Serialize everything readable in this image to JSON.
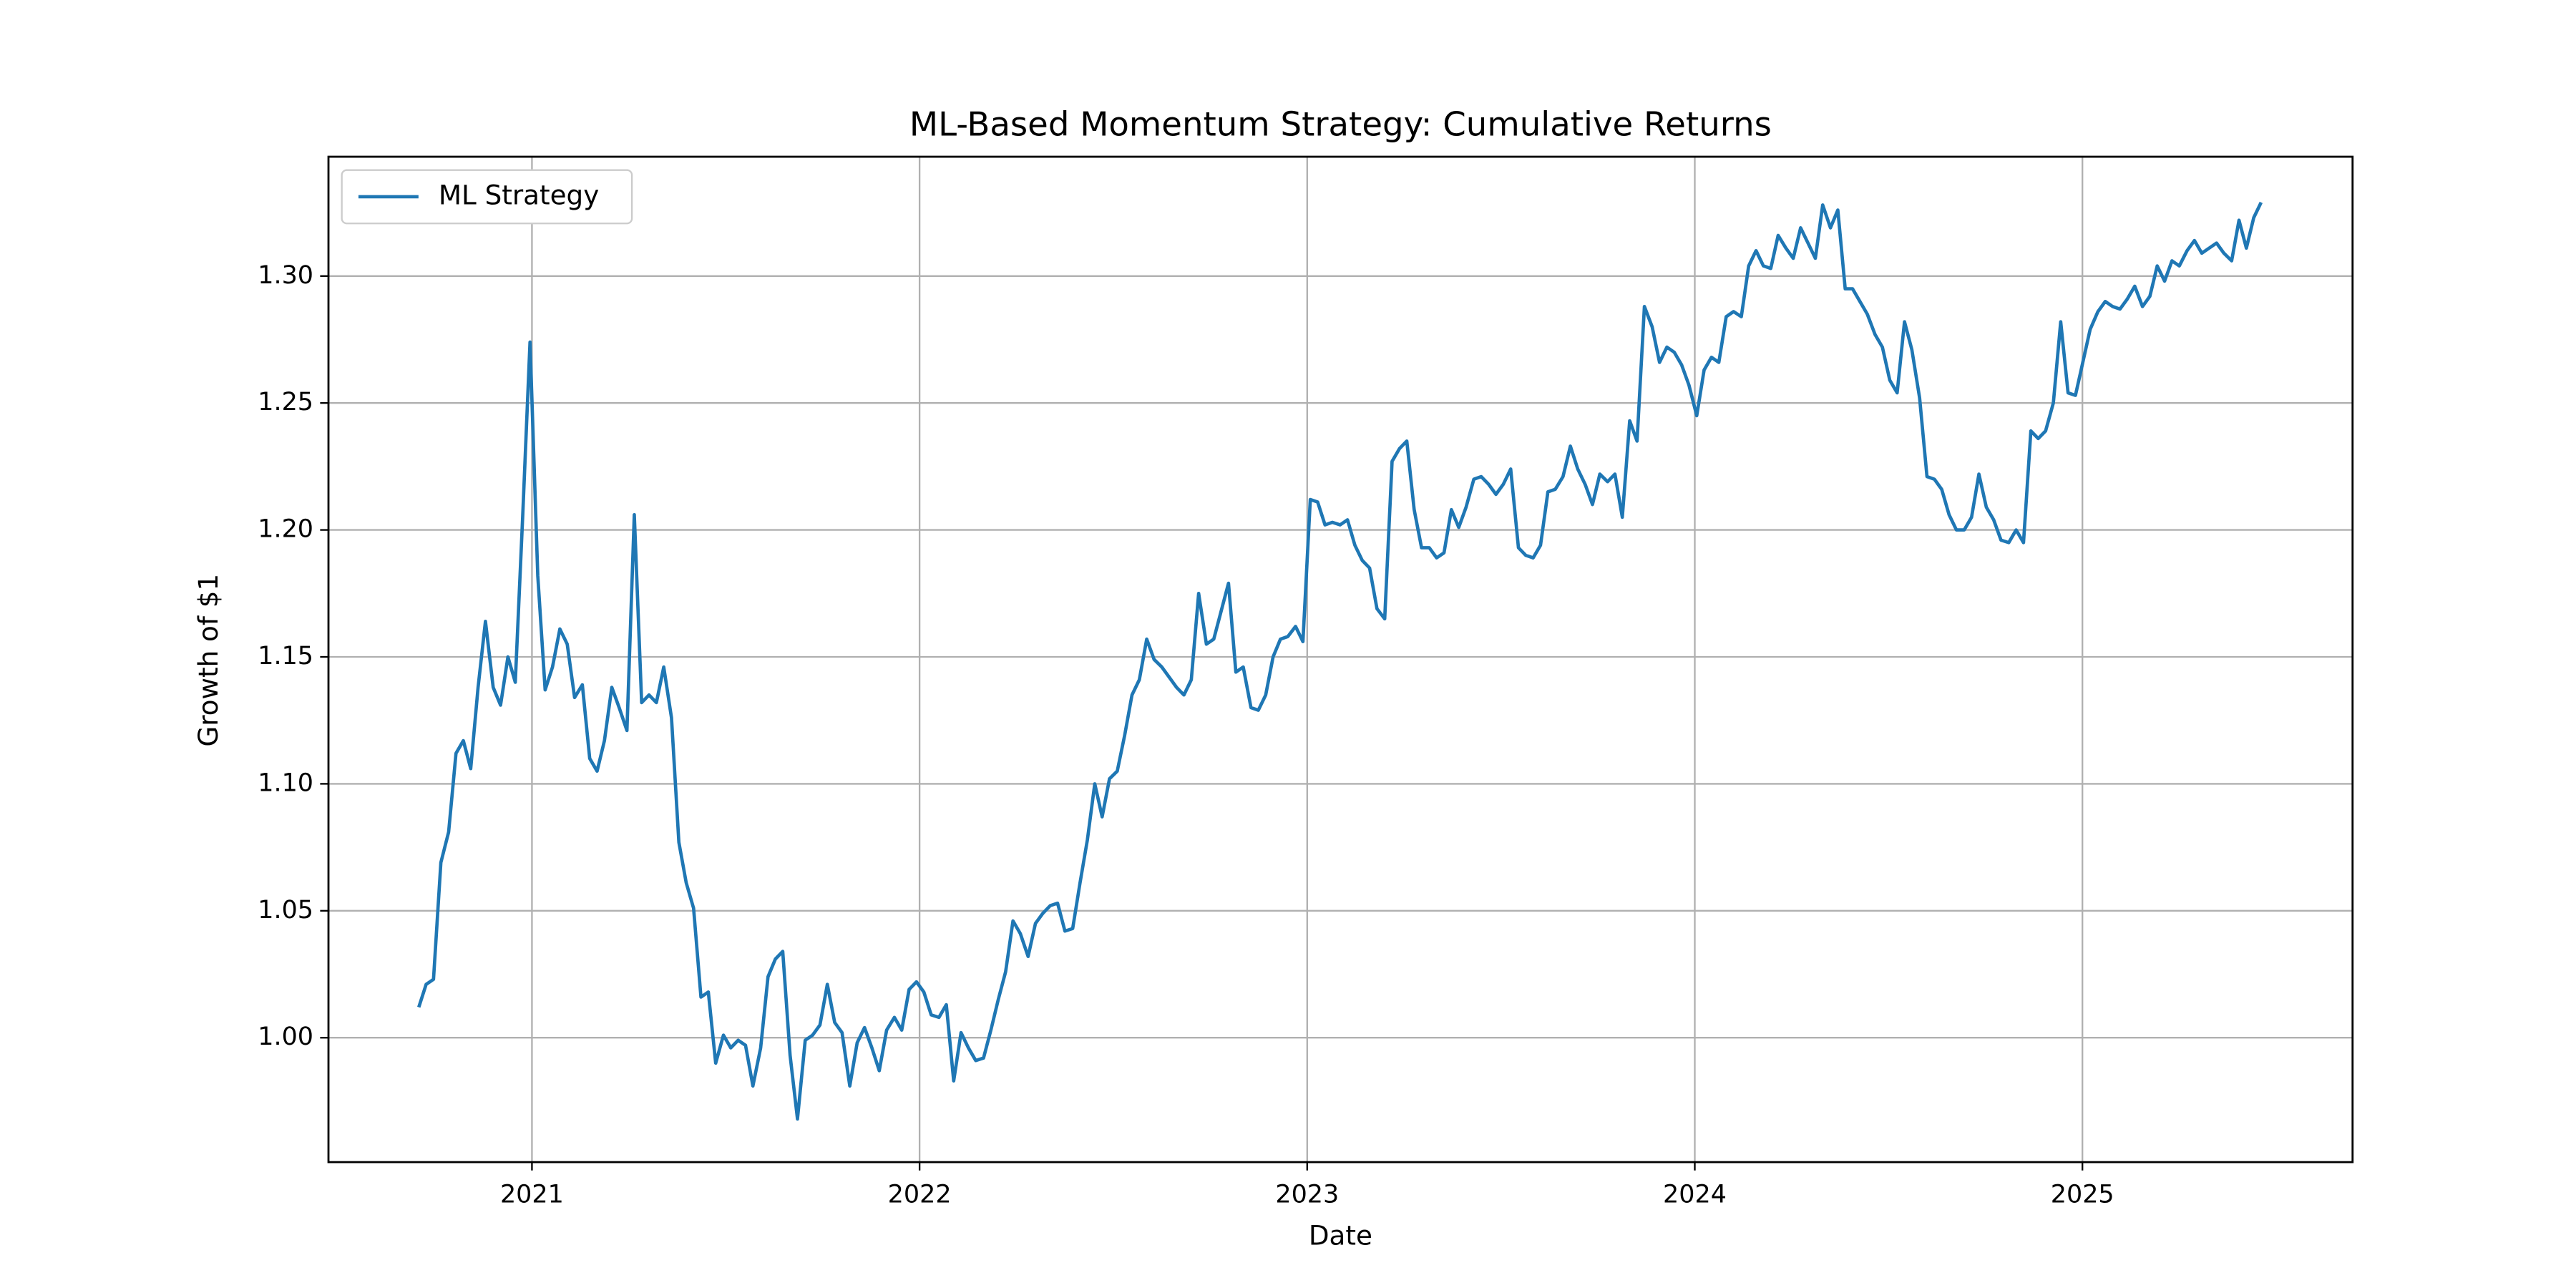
{
  "chart_data": {
    "type": "line",
    "title": "ML-Based Momentum Strategy: Cumulative Returns",
    "xlabel": "Date",
    "ylabel": "Growth of $1",
    "x": [
      2020.708,
      2020.727,
      2020.746,
      2020.765,
      2020.785,
      2020.804,
      2020.823,
      2020.842,
      2020.861,
      2020.88,
      2020.9,
      2020.919,
      2020.938,
      2020.957,
      2020.976,
      2020.995,
      2021.015,
      2021.034,
      2021.053,
      2021.072,
      2021.091,
      2021.11,
      2021.13,
      2021.149,
      2021.168,
      2021.187,
      2021.206,
      2021.225,
      2021.245,
      2021.264,
      2021.283,
      2021.302,
      2021.321,
      2021.34,
      2021.36,
      2021.379,
      2021.398,
      2021.417,
      2021.436,
      2021.455,
      2021.474,
      2021.494,
      2021.513,
      2021.532,
      2021.551,
      2021.57,
      2021.59,
      2021.609,
      2021.628,
      2021.647,
      2021.666,
      2021.685,
      2021.705,
      2021.724,
      2021.743,
      2021.762,
      2021.781,
      2021.8,
      2021.82,
      2021.839,
      2021.858,
      2021.877,
      2021.896,
      2021.915,
      2021.935,
      2021.954,
      2021.973,
      2021.992,
      2022.011,
      2022.03,
      2022.05,
      2022.069,
      2022.088,
      2022.107,
      2022.126,
      2022.145,
      2022.165,
      2022.184,
      2022.203,
      2022.222,
      2022.241,
      2022.26,
      2022.28,
      2022.299,
      2022.318,
      2022.337,
      2022.356,
      2022.375,
      2022.395,
      2022.414,
      2022.433,
      2022.452,
      2022.471,
      2022.49,
      2022.51,
      2022.529,
      2022.548,
      2022.567,
      2022.586,
      2022.605,
      2022.625,
      2022.644,
      2022.663,
      2022.682,
      2022.701,
      2022.72,
      2022.74,
      2022.759,
      2022.778,
      2022.797,
      2022.816,
      2022.835,
      2022.855,
      2022.874,
      2022.893,
      2022.912,
      2022.931,
      2022.95,
      2022.97,
      2022.989,
      2023.008,
      2023.027,
      2023.046,
      2023.065,
      2023.085,
      2023.104,
      2023.123,
      2023.142,
      2023.161,
      2023.18,
      2023.2,
      2023.219,
      2023.238,
      2023.257,
      2023.276,
      2023.295,
      2023.315,
      2023.334,
      2023.353,
      2023.372,
      2023.391,
      2023.41,
      2023.43,
      2023.449,
      2023.468,
      2023.487,
      2023.506,
      2023.525,
      2023.545,
      2023.564,
      2023.583,
      2023.602,
      2023.621,
      2023.64,
      2023.66,
      2023.679,
      2023.698,
      2023.717,
      2023.736,
      2023.755,
      2023.775,
      2023.794,
      2023.813,
      2023.832,
      2023.851,
      2023.87,
      2023.89,
      2023.909,
      2023.928,
      2023.947,
      2023.966,
      2023.985,
      2024.005,
      2024.024,
      2024.043,
      2024.062,
      2024.081,
      2024.1,
      2024.12,
      2024.139,
      2024.158,
      2024.177,
      2024.196,
      2024.215,
      2024.235,
      2024.254,
      2024.273,
      2024.292,
      2024.311,
      2024.33,
      2024.35,
      2024.369,
      2024.388,
      2024.407,
      2024.426,
      2024.445,
      2024.465,
      2024.484,
      2024.503,
      2024.522,
      2024.541,
      2024.56,
      2024.58,
      2024.599,
      2024.618,
      2024.637,
      2024.656,
      2024.675,
      2024.695,
      2024.714,
      2024.733,
      2024.752,
      2024.771,
      2024.79,
      2024.81,
      2024.829,
      2024.848,
      2024.867,
      2024.886,
      2024.905,
      2024.925,
      2024.944,
      2024.963,
      2024.982,
      2025.001,
      2025.02,
      2025.04,
      2025.059,
      2025.078,
      2025.097,
      2025.116,
      2025.135,
      2025.155,
      2025.174,
      2025.193,
      2025.212,
      2025.231,
      2025.25,
      2025.27,
      2025.289,
      2025.308,
      2025.327,
      2025.346,
      2025.365,
      2025.385,
      2025.404,
      2025.423,
      2025.442,
      2025.461
    ],
    "series": [
      {
        "name": "ML Strategy",
        "color": "#1f77b4",
        "values": [
          1.012,
          1.021,
          1.023,
          1.069,
          1.081,
          1.112,
          1.117,
          1.106,
          1.138,
          1.164,
          1.138,
          1.131,
          1.15,
          1.14,
          1.205,
          1.274,
          1.182,
          1.137,
          1.146,
          1.161,
          1.155,
          1.134,
          1.139,
          1.11,
          1.105,
          1.117,
          1.138,
          1.13,
          1.121,
          1.206,
          1.132,
          1.135,
          1.132,
          1.146,
          1.126,
          1.077,
          1.061,
          1.051,
          1.016,
          1.018,
          0.99,
          1.001,
          0.996,
          0.999,
          0.997,
          0.981,
          0.996,
          1.024,
          1.031,
          1.034,
          0.993,
          0.968,
          0.999,
          1.001,
          1.005,
          1.021,
          1.006,
          1.002,
          0.981,
          0.998,
          1.004,
          0.996,
          0.987,
          1.003,
          1.008,
          1.003,
          1.019,
          1.022,
          1.018,
          1.009,
          1.008,
          1.013,
          0.983,
          1.002,
          0.996,
          0.991,
          0.992,
          1.003,
          1.015,
          1.026,
          1.046,
          1.041,
          1.032,
          1.045,
          1.049,
          1.052,
          1.053,
          1.042,
          1.043,
          1.061,
          1.078,
          1.1,
          1.087,
          1.102,
          1.105,
          1.119,
          1.135,
          1.141,
          1.157,
          1.149,
          1.146,
          1.142,
          1.138,
          1.135,
          1.141,
          1.175,
          1.155,
          1.157,
          1.168,
          1.179,
          1.144,
          1.146,
          1.13,
          1.129,
          1.135,
          1.15,
          1.157,
          1.158,
          1.162,
          1.156,
          1.212,
          1.211,
          1.202,
          1.203,
          1.202,
          1.204,
          1.194,
          1.188,
          1.185,
          1.169,
          1.165,
          1.227,
          1.232,
          1.235,
          1.208,
          1.193,
          1.193,
          1.189,
          1.191,
          1.208,
          1.201,
          1.209,
          1.22,
          1.221,
          1.218,
          1.214,
          1.218,
          1.224,
          1.193,
          1.19,
          1.189,
          1.194,
          1.215,
          1.216,
          1.221,
          1.233,
          1.224,
          1.218,
          1.21,
          1.222,
          1.219,
          1.222,
          1.205,
          1.243,
          1.235,
          1.288,
          1.28,
          1.266,
          1.272,
          1.27,
          1.265,
          1.257,
          1.245,
          1.263,
          1.268,
          1.266,
          1.284,
          1.286,
          1.284,
          1.304,
          1.31,
          1.304,
          1.303,
          1.316,
          1.311,
          1.307,
          1.319,
          1.313,
          1.307,
          1.328,
          1.319,
          1.326,
          1.295,
          1.295,
          1.29,
          1.285,
          1.277,
          1.272,
          1.259,
          1.254,
          1.282,
          1.271,
          1.252,
          1.221,
          1.22,
          1.216,
          1.206,
          1.2,
          1.2,
          1.205,
          1.222,
          1.209,
          1.204,
          1.196,
          1.195,
          1.2,
          1.195,
          1.239,
          1.236,
          1.239,
          1.25,
          1.282,
          1.254,
          1.253,
          1.266,
          1.279,
          1.286,
          1.29,
          1.288,
          1.287,
          1.291,
          1.296,
          1.288,
          1.292,
          1.304,
          1.298,
          1.306,
          1.304,
          1.31,
          1.314,
          1.309,
          1.311,
          1.313,
          1.309,
          1.306,
          1.322,
          1.311,
          1.323,
          1.329
        ]
      }
    ],
    "xlim": [
      2020.475,
      2025.697
    ],
    "xticks": [
      2021,
      2022,
      2023,
      2024,
      2025
    ],
    "ylim": [
      0.951,
      1.347
    ],
    "yticks": [
      {
        "value": 1,
        "label": "1.00"
      },
      {
        "value": 1.05,
        "label": "1.05"
      },
      {
        "value": 1.1,
        "label": "1.10"
      },
      {
        "value": 1.15,
        "label": "1.15"
      },
      {
        "value": 1.2,
        "label": "1.20"
      },
      {
        "value": 1.25,
        "label": "1.25"
      },
      {
        "value": 1.3,
        "label": "1.30"
      }
    ],
    "grid": true,
    "legend": "upper left"
  }
}
